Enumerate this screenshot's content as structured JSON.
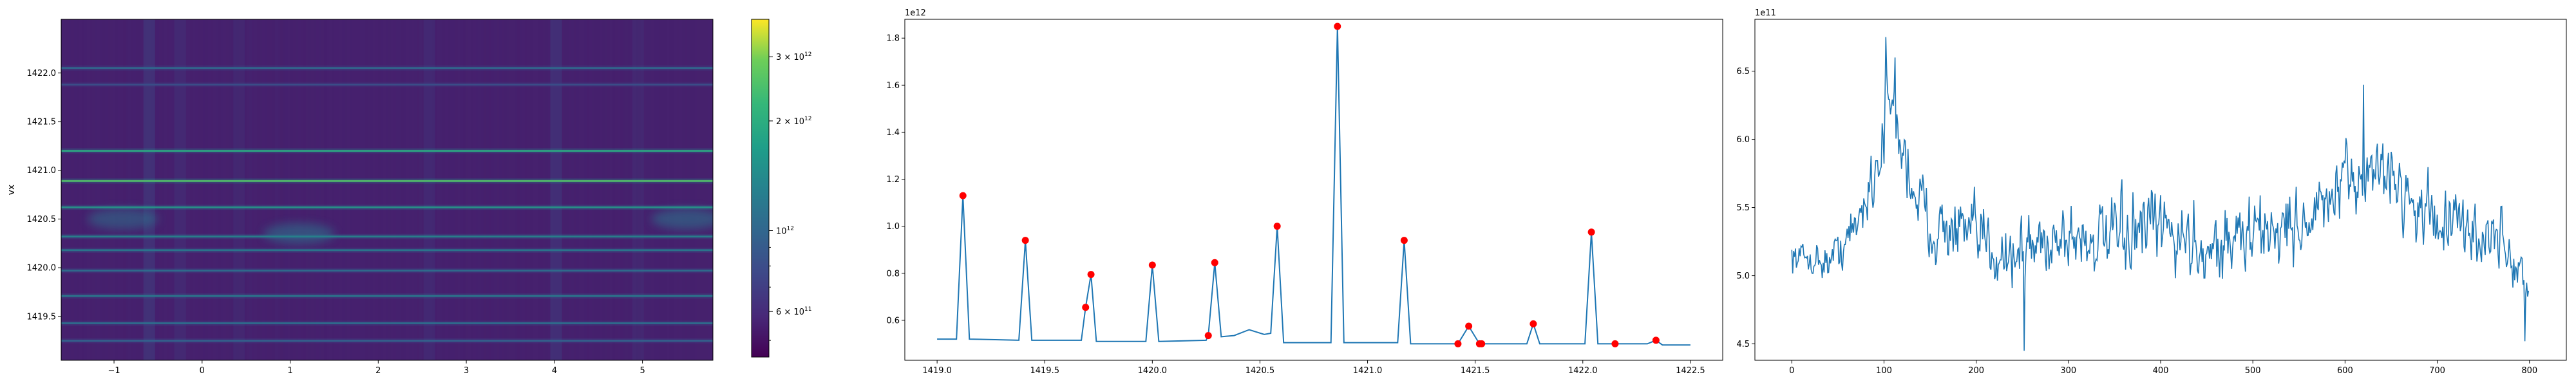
{
  "chart_data": [
    {
      "type": "heatmap",
      "xlabel": "",
      "ylabel": "vx",
      "xlim": [
        -1.6,
        5.8
      ],
      "ylim": [
        1419.05,
        1422.55
      ],
      "xticks": [
        "−1",
        "0",
        "1",
        "2",
        "3",
        "4",
        "5"
      ],
      "xtick_values": [
        -1,
        0,
        1,
        2,
        3,
        4,
        5
      ],
      "yticks": [
        "1419.5",
        "1420.0",
        "1420.5",
        "1421.0",
        "1421.5",
        "1422.0"
      ],
      "ytick_values": [
        1419.5,
        1420.0,
        1420.5,
        1421.0,
        1421.5,
        1422.0
      ],
      "colormap": "viridis",
      "colorbar": {
        "scale": "log",
        "range": [
          450000000000,
          3800000000000
        ],
        "major_ticks": [
          {
            "value": 600000000000,
            "base": "6 × 10",
            "exp": "11"
          },
          {
            "value": 1000000000000,
            "base": "10",
            "exp": "12"
          },
          {
            "value": 2000000000000,
            "base": "2 × 10",
            "exp": "12"
          },
          {
            "value": 3000000000000,
            "base": "3 × 10",
            "exp": "12"
          }
        ]
      },
      "bright_rows": [
        {
          "y": 1421.2,
          "intensity": 0.72
        },
        {
          "y": 1420.89,
          "intensity": 0.85
        },
        {
          "y": 1420.62,
          "intensity": 0.65
        },
        {
          "y": 1420.32,
          "intensity": 0.55
        },
        {
          "y": 1420.18,
          "intensity": 0.5
        },
        {
          "y": 1419.97,
          "intensity": 0.45
        },
        {
          "y": 1419.71,
          "intensity": 0.5
        },
        {
          "y": 1419.43,
          "intensity": 0.45
        },
        {
          "y": 1419.25,
          "intensity": 0.4
        },
        {
          "y": 1422.05,
          "intensity": 0.42
        },
        {
          "y": 1421.88,
          "intensity": 0.3
        }
      ],
      "bright_columns": [
        {
          "x": -0.6,
          "intensity": 0.35
        },
        {
          "x": -0.25,
          "intensity": 0.2
        },
        {
          "x": 0.42,
          "intensity": 0.15
        },
        {
          "x": 2.58,
          "intensity": 0.18
        },
        {
          "x": 4.02,
          "intensity": 0.3
        },
        {
          "x": 4.95,
          "intensity": 0.15
        }
      ],
      "blobs": [
        {
          "x": -0.9,
          "y": 1420.5,
          "intensity": 0.5
        },
        {
          "x": 1.1,
          "y": 1420.35,
          "intensity": 0.55
        },
        {
          "x": 5.5,
          "y": 1420.5,
          "intensity": 0.55
        }
      ]
    },
    {
      "type": "line",
      "xlabel": "",
      "ylabel": "",
      "offset_label": "1e12",
      "xlim": [
        1418.85,
        1422.65
      ],
      "ylim": [
        0.43,
        1.88
      ],
      "xticks": [
        "1419.0",
        "1419.5",
        "1420.0",
        "1420.5",
        "1421.0",
        "1421.5",
        "1422.0",
        "1422.5"
      ],
      "xtick_values": [
        1419.0,
        1419.5,
        1420.0,
        1420.5,
        1421.0,
        1421.5,
        1422.0,
        1422.5
      ],
      "yticks": [
        "0.6",
        "0.8",
        "1.0",
        "1.2",
        "1.4",
        "1.6",
        "1.8"
      ],
      "ytick_values": [
        0.6,
        0.8,
        1.0,
        1.2,
        1.4,
        1.6,
        1.8
      ],
      "line_color": "#1f77b4",
      "marker_color": "#ff0000",
      "x": [
        1419.0,
        1419.09,
        1419.12,
        1419.15,
        1419.38,
        1419.41,
        1419.44,
        1419.67,
        1419.69,
        1419.715,
        1419.74,
        1419.97,
        1420.0,
        1420.03,
        1420.25,
        1420.26,
        1420.29,
        1420.32,
        1420.38,
        1420.45,
        1420.52,
        1420.55,
        1420.58,
        1420.61,
        1420.83,
        1420.86,
        1420.89,
        1421.14,
        1421.17,
        1421.2,
        1421.39,
        1421.42,
        1421.47,
        1421.52,
        1421.53,
        1421.56,
        1421.74,
        1421.77,
        1421.8,
        1422.01,
        1422.04,
        1422.07,
        1422.15,
        1422.3,
        1422.34,
        1422.37,
        1422.5
      ],
      "y": [
        0.52,
        0.52,
        1.13,
        0.52,
        0.515,
        0.94,
        0.515,
        0.515,
        0.655,
        0.795,
        0.51,
        0.51,
        0.835,
        0.51,
        0.515,
        0.535,
        0.845,
        0.53,
        0.535,
        0.56,
        0.54,
        0.545,
        1.0,
        0.505,
        0.505,
        1.85,
        0.505,
        0.505,
        0.94,
        0.5,
        0.5,
        0.5,
        0.575,
        0.5,
        0.5,
        0.5,
        0.5,
        0.585,
        0.5,
        0.5,
        0.975,
        0.5,
        0.5,
        0.5,
        0.515,
        0.495,
        0.495
      ],
      "peaks": [
        {
          "x": 1419.12,
          "y": 1.13
        },
        {
          "x": 1419.41,
          "y": 0.94
        },
        {
          "x": 1419.69,
          "y": 0.655
        },
        {
          "x": 1419.715,
          "y": 0.795
        },
        {
          "x": 1420.0,
          "y": 0.835
        },
        {
          "x": 1420.26,
          "y": 0.535
        },
        {
          "x": 1420.29,
          "y": 0.845
        },
        {
          "x": 1420.58,
          "y": 1.0
        },
        {
          "x": 1420.86,
          "y": 1.85
        },
        {
          "x": 1421.17,
          "y": 0.94
        },
        {
          "x": 1421.42,
          "y": 0.5
        },
        {
          "x": 1421.47,
          "y": 0.575
        },
        {
          "x": 1421.52,
          "y": 0.5
        },
        {
          "x": 1421.53,
          "y": 0.5
        },
        {
          "x": 1421.77,
          "y": 0.585
        },
        {
          "x": 1422.04,
          "y": 0.975
        },
        {
          "x": 1422.15,
          "y": 0.5
        },
        {
          "x": 1422.34,
          "y": 0.515
        }
      ]
    },
    {
      "type": "line",
      "xlabel": "",
      "ylabel": "",
      "offset_label": "1e11",
      "xlim": [
        -40,
        840
      ],
      "ylim": [
        4.38,
        6.88
      ],
      "xticks": [
        "0",
        "100",
        "200",
        "300",
        "400",
        "500",
        "600",
        "700",
        "800"
      ],
      "xtick_values": [
        0,
        100,
        200,
        300,
        400,
        500,
        600,
        700,
        800
      ],
      "yticks": [
        "4.5",
        "5.0",
        "5.5",
        "6.0",
        "6.5"
      ],
      "ytick_values": [
        4.5,
        5.0,
        5.5,
        6.0,
        6.5
      ],
      "line_color": "#1f77b4",
      "n_points": 800,
      "envelope": [
        {
          "x": 0,
          "mean": 5.15,
          "amp": 0.15
        },
        {
          "x": 40,
          "mean": 5.1,
          "amp": 0.17
        },
        {
          "x": 70,
          "mean": 5.35,
          "amp": 0.25
        },
        {
          "x": 95,
          "mean": 5.9,
          "amp": 0.4
        },
        {
          "x": 105,
          "mean": 6.3,
          "amp": 0.3
        },
        {
          "x": 125,
          "mean": 5.8,
          "amp": 0.4
        },
        {
          "x": 150,
          "mean": 5.35,
          "amp": 0.3
        },
        {
          "x": 190,
          "mean": 5.3,
          "amp": 0.35
        },
        {
          "x": 240,
          "mean": 5.15,
          "amp": 0.35
        },
        {
          "x": 290,
          "mean": 5.3,
          "amp": 0.35
        },
        {
          "x": 340,
          "mean": 5.25,
          "amp": 0.35
        },
        {
          "x": 400,
          "mean": 5.35,
          "amp": 0.4
        },
        {
          "x": 450,
          "mean": 5.2,
          "amp": 0.35
        },
        {
          "x": 500,
          "mean": 5.3,
          "amp": 0.38
        },
        {
          "x": 560,
          "mean": 5.4,
          "amp": 0.35
        },
        {
          "x": 610,
          "mean": 5.7,
          "amp": 0.35
        },
        {
          "x": 640,
          "mean": 5.8,
          "amp": 0.3
        },
        {
          "x": 680,
          "mean": 5.5,
          "amp": 0.35
        },
        {
          "x": 720,
          "mean": 5.35,
          "amp": 0.35
        },
        {
          "x": 770,
          "mean": 5.25,
          "amp": 0.3
        },
        {
          "x": 800,
          "mean": 4.9,
          "amp": 0.25
        }
      ],
      "extremes": [
        {
          "x": 102,
          "y": 6.75
        },
        {
          "x": 112,
          "y": 6.6
        },
        {
          "x": 620,
          "y": 6.4
        },
        {
          "x": 252,
          "y": 4.45
        },
        {
          "x": 795,
          "y": 4.52
        }
      ]
    }
  ]
}
